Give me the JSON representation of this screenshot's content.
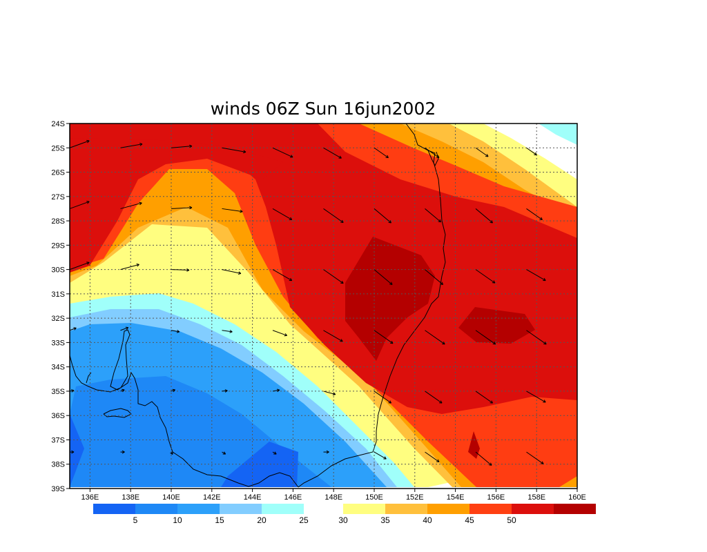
{
  "title": "winds 06Z Sun 16jun2002",
  "map": {
    "lon_range": [
      135,
      160
    ],
    "lat_range": [
      -39,
      -24
    ],
    "lat_ticks": [
      "24S",
      "25S",
      "26S",
      "27S",
      "28S",
      "29S",
      "30S",
      "31S",
      "32S",
      "33S",
      "34S",
      "35S",
      "36S",
      "37S",
      "38S",
      "39S"
    ],
    "lon_ticks": [
      "136E",
      "138E",
      "140E",
      "142E",
      "144E",
      "146E",
      "148E",
      "150E",
      "152E",
      "154E",
      "156E",
      "158E",
      "160E"
    ]
  },
  "colorbar": {
    "groups": [
      {
        "colors": [
          "#1464f4",
          "#1e88f6",
          "#2ca0fa",
          "#82cdff",
          "#a0fffa"
        ],
        "labels": [
          "5",
          "10",
          "15",
          "20",
          "25"
        ]
      },
      {
        "colors": [
          "#fffe80",
          "#ffc03c",
          "#ff9f00",
          "#ff4012",
          "#dc0f0c",
          "#b40000"
        ],
        "labels": [
          "30",
          "35",
          "40",
          "45",
          "50"
        ]
      }
    ]
  },
  "colors": {
    "blue_dark": "#1464f4",
    "blue": "#1e88f6",
    "blue_mid": "#2ca0fa",
    "blue_light": "#82cdff",
    "cyan": "#a0fffa",
    "white": "#ffffff",
    "yellow": "#fffe80",
    "orange_light": "#ffc03c",
    "orange": "#ff9f00",
    "red_orange": "#ff3d12",
    "red": "#dc0f0c",
    "dark_red": "#b40000"
  }
}
